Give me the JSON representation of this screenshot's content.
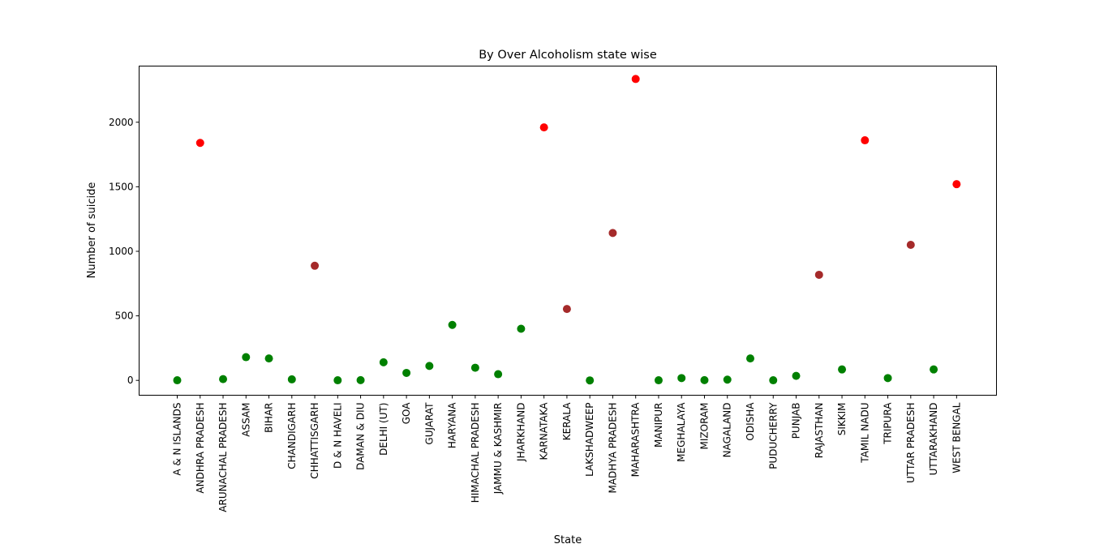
{
  "chart_data": {
    "type": "scatter",
    "title": "By Over Alcoholism state wise",
    "xlabel": "State",
    "ylabel": "Number of suicide",
    "ylim": [
      -115,
      2435
    ],
    "yticks": [
      0,
      500,
      1000,
      1500,
      2000
    ],
    "grid": false,
    "legend": "none",
    "colors": {
      "high": "#ff0000",
      "medium": "#a52a2a",
      "low": "#008000"
    },
    "points": [
      {
        "state": "A & N ISLANDS",
        "value": 1,
        "group": "low"
      },
      {
        "state": "ANDHRA PRADESH",
        "value": 1840,
        "group": "high"
      },
      {
        "state": "ARUNACHAL PRADESH",
        "value": 10,
        "group": "low"
      },
      {
        "state": "ASSAM",
        "value": 180,
        "group": "low"
      },
      {
        "state": "BIHAR",
        "value": 170,
        "group": "low"
      },
      {
        "state": "CHANDIGARH",
        "value": 8,
        "group": "low"
      },
      {
        "state": "CHHATTISGARH",
        "value": 888,
        "group": "medium"
      },
      {
        "state": "D & N HAVELI",
        "value": 1,
        "group": "low"
      },
      {
        "state": "DAMAN & DIU",
        "value": 2,
        "group": "low"
      },
      {
        "state": "DELHI (UT)",
        "value": 140,
        "group": "low"
      },
      {
        "state": "GOA",
        "value": 58,
        "group": "low"
      },
      {
        "state": "GUJARAT",
        "value": 112,
        "group": "low"
      },
      {
        "state": "HARYANA",
        "value": 430,
        "group": "low"
      },
      {
        "state": "HIMACHAL PRADESH",
        "value": 98,
        "group": "low"
      },
      {
        "state": "JAMMU & KASHMIR",
        "value": 48,
        "group": "low"
      },
      {
        "state": "JHARKHAND",
        "value": 400,
        "group": "low"
      },
      {
        "state": "KARNATAKA",
        "value": 1960,
        "group": "high"
      },
      {
        "state": "KERALA",
        "value": 553,
        "group": "medium"
      },
      {
        "state": "LAKSHADWEEP",
        "value": 0,
        "group": "low"
      },
      {
        "state": "MADHYA PRADESH",
        "value": 1142,
        "group": "medium"
      },
      {
        "state": "MAHARASHTRA",
        "value": 2335,
        "group": "high"
      },
      {
        "state": "MANIPUR",
        "value": 1,
        "group": "low"
      },
      {
        "state": "MEGHALAYA",
        "value": 18,
        "group": "low"
      },
      {
        "state": "MIZORAM",
        "value": 2,
        "group": "low"
      },
      {
        "state": "NAGALAND",
        "value": 6,
        "group": "low"
      },
      {
        "state": "ODISHA",
        "value": 170,
        "group": "low"
      },
      {
        "state": "PUDUCHERRY",
        "value": 1,
        "group": "low"
      },
      {
        "state": "PUNJAB",
        "value": 35,
        "group": "low"
      },
      {
        "state": "RAJASTHAN",
        "value": 818,
        "group": "medium"
      },
      {
        "state": "SIKKIM",
        "value": 85,
        "group": "low"
      },
      {
        "state": "TAMIL NADU",
        "value": 1860,
        "group": "high"
      },
      {
        "state": "TRIPURA",
        "value": 18,
        "group": "low"
      },
      {
        "state": "UTTAR PRADESH",
        "value": 1050,
        "group": "medium"
      },
      {
        "state": "UTTARAKHAND",
        "value": 85,
        "group": "low"
      },
      {
        "state": "WEST BENGAL",
        "value": 1520,
        "group": "high"
      }
    ]
  }
}
